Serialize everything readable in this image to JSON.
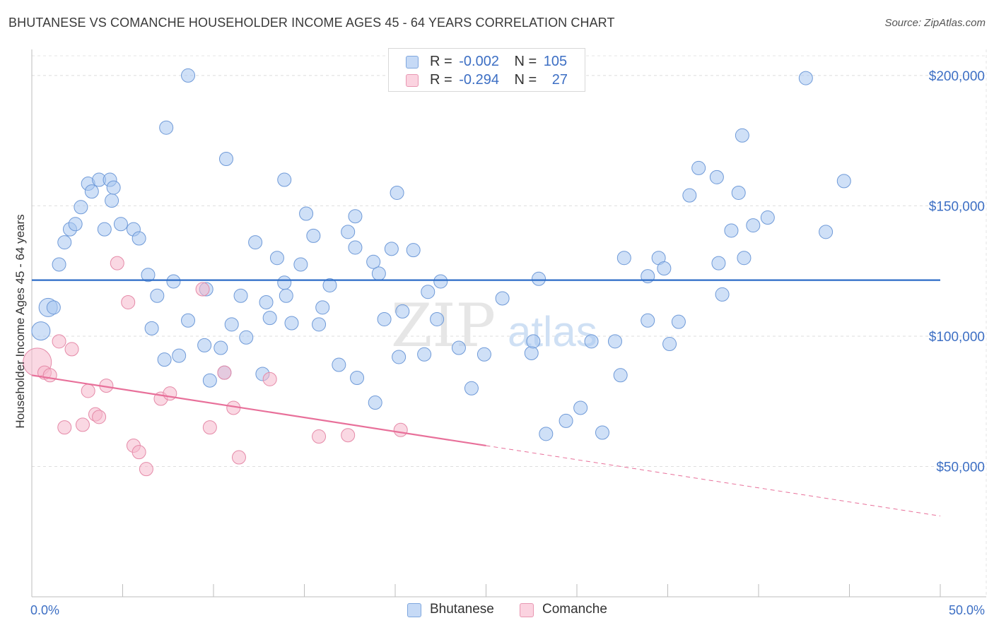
{
  "header": {
    "title": "BHUTANESE VS COMANCHE HOUSEHOLDER INCOME AGES 45 - 64 YEARS CORRELATION CHART",
    "source": "Source: ZipAtlas.com"
  },
  "watermark": {
    "zip": "ZIP",
    "atlas": "atlas"
  },
  "legend": {
    "rows": [
      {
        "r_label": "R =",
        "r_value": "-0.002",
        "n_label": "N =",
        "n_value": "105",
        "color": "#a8c6f0"
      },
      {
        "r_label": "R =",
        "r_value": "-0.294",
        "n_label": "N =",
        "n_value": "27",
        "color": "#f5b8cc"
      }
    ]
  },
  "bottom_legend": {
    "items": [
      {
        "label": "Bhutanese",
        "color": "#a8c6f0"
      },
      {
        "label": "Comanche",
        "color": "#f5b8cc"
      }
    ]
  },
  "chart_data": {
    "type": "scatter",
    "title": "BHUTANESE VS COMANCHE HOUSEHOLDER INCOME AGES 45 - 64 YEARS CORRELATION CHART",
    "xlabel": "",
    "ylabel": "Householder Income Ages 45 - 64 years",
    "xlim": [
      0,
      50
    ],
    "ylim": [
      0,
      210000
    ],
    "x_tick_labels": [
      "0.0%",
      "50.0%"
    ],
    "y_ticks": [
      50000,
      100000,
      150000,
      200000
    ],
    "y_tick_labels": [
      "$50,000",
      "$100,000",
      "$150,000",
      "$200,000"
    ],
    "grid": true,
    "legend_position": "top-center",
    "series": [
      {
        "name": "Bhutanese",
        "color": "#a8c6f0",
        "stroke": "#6f9ad8",
        "trend": {
          "x": [
            0,
            50
          ],
          "y": [
            121500,
            121500
          ],
          "color": "#2c6cc7",
          "dashed_from": null
        },
        "points": [
          [
            8.6,
            200000
          ],
          [
            7.4,
            180000
          ],
          [
            10.7,
            168000
          ],
          [
            13.9,
            160000
          ],
          [
            20.1,
            155000
          ],
          [
            3.1,
            158500
          ],
          [
            3.7,
            160000
          ],
          [
            4.3,
            160000
          ],
          [
            4.4,
            152000
          ],
          [
            4.5,
            157000
          ],
          [
            3.3,
            155500
          ],
          [
            2.7,
            149500
          ],
          [
            1.8,
            136000
          ],
          [
            2.1,
            141000
          ],
          [
            2.4,
            143000
          ],
          [
            4.0,
            141000
          ],
          [
            4.9,
            143000
          ],
          [
            5.6,
            141000
          ],
          [
            5.9,
            137500
          ],
          [
            1.5,
            127500
          ],
          [
            0.9,
            111000
          ],
          [
            1.2,
            111000
          ],
          [
            0.5,
            102000
          ],
          [
            6.4,
            123500
          ],
          [
            6.9,
            115500
          ],
          [
            6.6,
            103000
          ],
          [
            7.8,
            121000
          ],
          [
            7.3,
            91000
          ],
          [
            8.1,
            92500
          ],
          [
            8.6,
            106000
          ],
          [
            9.5,
            96500
          ],
          [
            9.8,
            83000
          ],
          [
            9.6,
            118000
          ],
          [
            10.4,
            95500
          ],
          [
            10.6,
            86000
          ],
          [
            11.0,
            104500
          ],
          [
            11.5,
            115500
          ],
          [
            11.8,
            99500
          ],
          [
            12.3,
            136000
          ],
          [
            12.7,
            85500
          ],
          [
            12.9,
            113000
          ],
          [
            13.1,
            107000
          ],
          [
            13.5,
            130000
          ],
          [
            13.9,
            120500
          ],
          [
            14.0,
            115500
          ],
          [
            14.3,
            105000
          ],
          [
            14.8,
            127500
          ],
          [
            15.1,
            147000
          ],
          [
            15.5,
            138500
          ],
          [
            15.8,
            104500
          ],
          [
            16.0,
            111000
          ],
          [
            16.4,
            119500
          ],
          [
            16.9,
            89000
          ],
          [
            17.4,
            140000
          ],
          [
            17.8,
            146000
          ],
          [
            17.8,
            134000
          ],
          [
            17.9,
            84000
          ],
          [
            18.8,
            128500
          ],
          [
            19.1,
            124000
          ],
          [
            19.4,
            106500
          ],
          [
            18.9,
            74500
          ],
          [
            19.8,
            133500
          ],
          [
            20.2,
            92000
          ],
          [
            20.4,
            109500
          ],
          [
            21.0,
            133000
          ],
          [
            21.6,
            93000
          ],
          [
            21.8,
            117000
          ],
          [
            22.3,
            106500
          ],
          [
            22.5,
            121000
          ],
          [
            23.5,
            95500
          ],
          [
            24.2,
            80000
          ],
          [
            24.9,
            93000
          ],
          [
            25.9,
            114500
          ],
          [
            27.5,
            93500
          ],
          [
            27.6,
            98000
          ],
          [
            27.9,
            122000
          ],
          [
            28.3,
            62500
          ],
          [
            29.4,
            67500
          ],
          [
            30.2,
            72500
          ],
          [
            30.8,
            98000
          ],
          [
            31.4,
            63000
          ],
          [
            32.1,
            98000
          ],
          [
            32.4,
            85000
          ],
          [
            32.6,
            130000
          ],
          [
            33.9,
            106000
          ],
          [
            33.9,
            123000
          ],
          [
            34.5,
            130000
          ],
          [
            34.8,
            126000
          ],
          [
            35.1,
            97000
          ],
          [
            35.6,
            105500
          ],
          [
            36.2,
            154000
          ],
          [
            36.7,
            164500
          ],
          [
            37.7,
            161000
          ],
          [
            37.8,
            128000
          ],
          [
            38.0,
            116000
          ],
          [
            38.5,
            140500
          ],
          [
            38.9,
            155000
          ],
          [
            39.2,
            130000
          ],
          [
            39.7,
            142500
          ],
          [
            39.1,
            177000
          ],
          [
            40.5,
            145500
          ],
          [
            42.6,
            199000
          ],
          [
            43.7,
            140000
          ],
          [
            44.7,
            159500
          ]
        ]
      },
      {
        "name": "Comanche",
        "color": "#f5b8cc",
        "stroke": "#e58aa8",
        "trend": {
          "x": [
            0,
            25,
            50
          ],
          "y": [
            85000,
            58000,
            31000
          ],
          "color": "#e8709a",
          "dashed_from": 25
        },
        "points": [
          [
            0.3,
            90000
          ],
          [
            0.7,
            86000
          ],
          [
            1.0,
            85000
          ],
          [
            1.5,
            98000
          ],
          [
            1.8,
            65000
          ],
          [
            2.2,
            95000
          ],
          [
            2.8,
            66000
          ],
          [
            3.1,
            79000
          ],
          [
            3.5,
            70000
          ],
          [
            3.7,
            69000
          ],
          [
            4.1,
            81000
          ],
          [
            4.7,
            128000
          ],
          [
            5.3,
            113000
          ],
          [
            5.6,
            58000
          ],
          [
            5.9,
            55500
          ],
          [
            6.3,
            49000
          ],
          [
            7.1,
            76000
          ],
          [
            7.6,
            78000
          ],
          [
            9.4,
            118000
          ],
          [
            9.8,
            65000
          ],
          [
            10.6,
            86000
          ],
          [
            11.1,
            72500
          ],
          [
            11.4,
            53500
          ],
          [
            13.1,
            83500
          ],
          [
            15.8,
            61500
          ],
          [
            17.4,
            62000
          ],
          [
            20.3,
            64000
          ]
        ]
      }
    ]
  }
}
